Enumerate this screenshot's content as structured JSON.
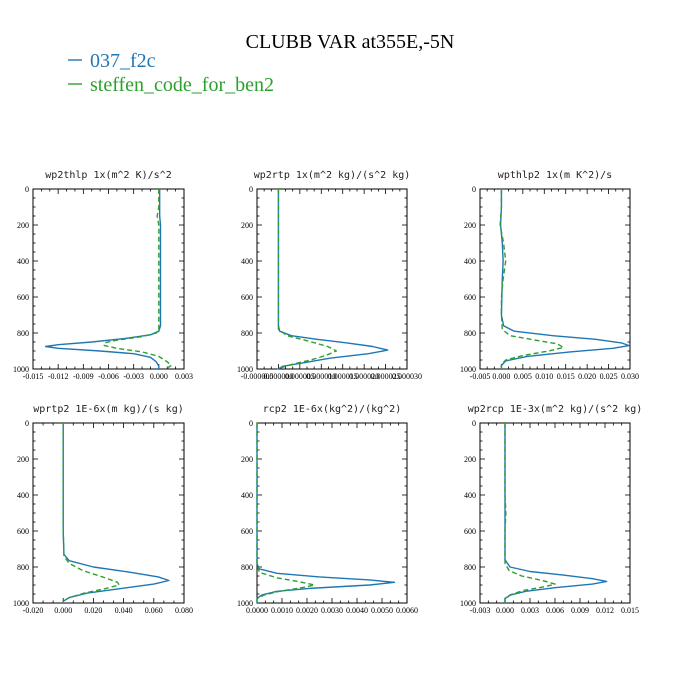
{
  "figure": {
    "title": "CLUBB VAR at355E,-5N"
  },
  "legend": [
    {
      "label": "037_f2c",
      "color": "#1f77b4",
      "dash": ""
    },
    {
      "label": "steffen_code_for_ben2",
      "color": "#2ca02c",
      "dash": "5,3"
    }
  ],
  "chart_data": [
    {
      "type": "line",
      "title": "wp2thlp  1x(m^2 K)/s^2",
      "xlim": [
        -0.015,
        0.003
      ],
      "xticks": [
        -0.015,
        -0.012,
        -0.009,
        -0.006,
        -0.003,
        0.0,
        0.003
      ],
      "xtick_labels": [
        "-0.015",
        "-0.012",
        "-0.009",
        "-0.006",
        "-0.003",
        "0.000",
        "0.003"
      ],
      "ylim": [
        0,
        1000
      ],
      "yticks": [
        0,
        200,
        400,
        600,
        800,
        1000
      ],
      "series": [
        {
          "name": "037_f2c",
          "points": [
            [
              0.0001,
              0
            ],
            [
              0.0001,
              100
            ],
            [
              0.0001,
              150
            ],
            [
              0.0002,
              200
            ],
            [
              0.0002,
              300
            ],
            [
              0.0002,
              400
            ],
            [
              0.0002,
              500
            ],
            [
              0.0002,
              600
            ],
            [
              0.0002,
              700
            ],
            [
              0.0002,
              760
            ],
            [
              0.0,
              790
            ],
            [
              -0.001,
              810
            ],
            [
              -0.004,
              830
            ],
            [
              -0.008,
              850
            ],
            [
              -0.012,
              865
            ],
            [
              -0.0135,
              875
            ],
            [
              -0.012,
              885
            ],
            [
              -0.007,
              900
            ],
            [
              -0.003,
              915
            ],
            [
              -0.001,
              935
            ],
            [
              -0.0003,
              960
            ],
            [
              0.0,
              985
            ],
            [
              0.0,
              1000
            ]
          ]
        },
        {
          "name": "steffen_code_for_ben2",
          "points": [
            [
              0.0,
              0
            ],
            [
              0.0,
              100
            ],
            [
              -0.0002,
              150
            ],
            [
              0.0,
              200
            ],
            [
              0.0,
              300
            ],
            [
              0.0,
              400
            ],
            [
              0.0,
              500
            ],
            [
              0.0,
              600
            ],
            [
              0.0,
              700
            ],
            [
              0.0,
              780
            ],
            [
              -0.0003,
              800
            ],
            [
              -0.002,
              820
            ],
            [
              -0.005,
              840
            ],
            [
              -0.0065,
              855
            ],
            [
              -0.0065,
              870
            ],
            [
              -0.005,
              885
            ],
            [
              -0.002,
              905
            ],
            [
              0.0,
              930
            ],
            [
              0.001,
              960
            ],
            [
              0.0015,
              980
            ],
            [
              0.001,
              995
            ]
          ]
        }
      ]
    },
    {
      "type": "line",
      "title": "wp2rtp  1x(m^2 kg)/(s^2 kg)",
      "xlim": [
        -5e-06,
        3e-05
      ],
      "xticks": [
        -5e-06,
        0.0,
        5e-06,
        1e-05,
        1.5e-05,
        2e-05,
        2.5e-05,
        3e-05
      ],
      "xtick_labels": [
        "-0.000005",
        "0.000000",
        "0.000005",
        "0.000010",
        "0.000015",
        "0.000020",
        "0.000025",
        "0.000030"
      ],
      "ylim": [
        0,
        1000
      ],
      "yticks": [
        0,
        200,
        400,
        600,
        800,
        1000
      ],
      "series": [
        {
          "name": "037_f2c",
          "points": [
            [
              0.0,
              0
            ],
            [
              0.0,
              200
            ],
            [
              0.0,
              400
            ],
            [
              0.0,
              600
            ],
            [
              0.0,
              760
            ],
            [
              3e-07,
              790
            ],
            [
              3e-06,
              815
            ],
            [
              9e-06,
              835
            ],
            [
              1.6e-05,
              855
            ],
            [
              2.2e-05,
              875
            ],
            [
              2.55e-05,
              895
            ],
            [
              2.1e-05,
              915
            ],
            [
              1.2e-05,
              940
            ],
            [
              6e-06,
              965
            ],
            [
              1e-06,
              985
            ],
            [
              0.0,
              1000
            ]
          ]
        },
        {
          "name": "steffen_code_for_ben2",
          "points": [
            [
              0.0,
              0
            ],
            [
              0.0,
              200
            ],
            [
              0.0,
              400
            ],
            [
              0.0,
              600
            ],
            [
              0.0,
              780
            ],
            [
              2e-06,
              815
            ],
            [
              7e-06,
              845
            ],
            [
              1.15e-05,
              875
            ],
            [
              1.35e-05,
              900
            ],
            [
              1.1e-05,
              925
            ],
            [
              7.5e-06,
              950
            ],
            [
              3e-06,
              975
            ],
            [
              -3e-07,
              1000
            ]
          ]
        }
      ]
    },
    {
      "type": "line",
      "title": "wpthlp2  1x(m K^2)/s",
      "xlim": [
        -0.005,
        0.03
      ],
      "xticks": [
        -0.005,
        0.0,
        0.005,
        0.01,
        0.015,
        0.02,
        0.025,
        0.03
      ],
      "xtick_labels": [
        "-0.005",
        "0.000",
        "0.005",
        "0.010",
        "0.015",
        "0.020",
        "0.025",
        "0.030"
      ],
      "ylim": [
        0,
        1000
      ],
      "yticks": [
        0,
        200,
        400,
        600,
        800,
        1000
      ],
      "series": [
        {
          "name": "037_f2c",
          "points": [
            [
              0.0,
              0
            ],
            [
              0.0,
              100
            ],
            [
              -0.0002,
              200
            ],
            [
              0.0002,
              300
            ],
            [
              0.0004,
              400
            ],
            [
              0.0002,
              500
            ],
            [
              0.0001,
              600
            ],
            [
              0.0,
              700
            ],
            [
              0.0005,
              760
            ],
            [
              0.003,
              790
            ],
            [
              0.012,
              815
            ],
            [
              0.022,
              835
            ],
            [
              0.028,
              855
            ],
            [
              0.0298,
              870
            ],
            [
              0.026,
              885
            ],
            [
              0.016,
              905
            ],
            [
              0.006,
              930
            ],
            [
              0.001,
              955
            ],
            [
              0.0,
              980
            ],
            [
              0.0,
              1000
            ]
          ]
        },
        {
          "name": "steffen_code_for_ben2",
          "points": [
            [
              0.0,
              0
            ],
            [
              0.0,
              100
            ],
            [
              -0.0003,
              200
            ],
            [
              0.0005,
              300
            ],
            [
              0.001,
              400
            ],
            [
              0.0004,
              500
            ],
            [
              0.0,
              600
            ],
            [
              0.0,
              700
            ],
            [
              0.0002,
              780
            ],
            [
              0.002,
              815
            ],
            [
              0.008,
              840
            ],
            [
              0.013,
              860
            ],
            [
              0.0145,
              880
            ],
            [
              0.011,
              900
            ],
            [
              0.005,
              925
            ],
            [
              0.001,
              950
            ],
            [
              0.0,
              975
            ],
            [
              0.0,
              1000
            ]
          ]
        }
      ]
    },
    {
      "type": "line",
      "title": "wprtp2  1E-6x(m kg)/(s kg)",
      "xlim": [
        -0.02,
        0.08
      ],
      "xticks": [
        -0.02,
        0.0,
        0.02,
        0.04,
        0.06,
        0.08
      ],
      "xtick_labels": [
        "-0.020",
        "0.000",
        "0.020",
        "0.040",
        "0.060",
        "0.080"
      ],
      "ylim": [
        0,
        1000
      ],
      "yticks": [
        0,
        200,
        400,
        600,
        800,
        1000
      ],
      "series": [
        {
          "name": "037_f2c",
          "points": [
            [
              0.0,
              0
            ],
            [
              0.0,
              200
            ],
            [
              0.0,
              400
            ],
            [
              0.0,
              600
            ],
            [
              0.0005,
              730
            ],
            [
              0.004,
              765
            ],
            [
              0.02,
              800
            ],
            [
              0.045,
              830
            ],
            [
              0.063,
              855
            ],
            [
              0.07,
              875
            ],
            [
              0.06,
              895
            ],
            [
              0.038,
              920
            ],
            [
              0.016,
              945
            ],
            [
              0.004,
              970
            ],
            [
              0.0,
              990
            ],
            [
              0.0,
              1000
            ]
          ]
        },
        {
          "name": "steffen_code_for_ben2",
          "points": [
            [
              0.0,
              0
            ],
            [
              0.0,
              200
            ],
            [
              0.0,
              400
            ],
            [
              0.0,
              600
            ],
            [
              0.0005,
              740
            ],
            [
              0.004,
              780
            ],
            [
              0.013,
              820
            ],
            [
              0.026,
              855
            ],
            [
              0.036,
              885
            ],
            [
              0.037,
              900
            ],
            [
              0.028,
              920
            ],
            [
              0.014,
              945
            ],
            [
              0.004,
              970
            ],
            [
              0.0,
              990
            ],
            [
              0.0,
              1000
            ]
          ]
        }
      ]
    },
    {
      "type": "line",
      "title": "rcp2  1E-6x(kg^2)/(kg^2)",
      "xlim": [
        0.0,
        0.006
      ],
      "xticks": [
        0.0,
        0.001,
        0.002,
        0.003,
        0.004,
        0.005,
        0.006
      ],
      "xtick_labels": [
        "0.0000",
        "0.0010",
        "0.0020",
        "0.0030",
        "0.0040",
        "0.0050",
        "0.0060"
      ],
      "ylim": [
        0,
        1000
      ],
      "yticks": [
        0,
        200,
        400,
        600,
        800,
        1000
      ],
      "series": [
        {
          "name": "037_f2c",
          "points": [
            [
              0.0,
              0
            ],
            [
              0.0,
              200
            ],
            [
              0.0,
              400
            ],
            [
              0.0,
              600
            ],
            [
              0.0,
              780
            ],
            [
              8e-05,
              810
            ],
            [
              0.0008,
              835
            ],
            [
              0.0025,
              855
            ],
            [
              0.0045,
              872
            ],
            [
              0.0055,
              885
            ],
            [
              0.0045,
              900
            ],
            [
              0.0022,
              918
            ],
            [
              0.0008,
              935
            ],
            [
              0.0002,
              955
            ],
            [
              0.0,
              975
            ],
            [
              0.0,
              1000
            ]
          ]
        },
        {
          "name": "steffen_code_for_ben2",
          "points": [
            [
              0.0,
              0
            ],
            [
              0.0,
              200
            ],
            [
              0.0,
              400
            ],
            [
              0.0,
              600
            ],
            [
              0.0,
              790
            ],
            [
              0.0001,
              830
            ],
            [
              0.0008,
              860
            ],
            [
              0.0018,
              885
            ],
            [
              0.0023,
              900
            ],
            [
              0.0018,
              915
            ],
            [
              0.0009,
              935
            ],
            [
              0.0003,
              955
            ],
            [
              0.0,
              975
            ],
            [
              0.0,
              1000
            ]
          ]
        }
      ]
    },
    {
      "type": "line",
      "title": "wp2rcp  1E-3x(m^2 kg)/(s^2 kg)",
      "xlim": [
        -0.003,
        0.015
      ],
      "xticks": [
        -0.003,
        0.0,
        0.003,
        0.006,
        0.009,
        0.012,
        0.015
      ],
      "xtick_labels": [
        "-0.003",
        "0.000",
        "0.003",
        "0.006",
        "0.009",
        "0.012",
        "0.015"
      ],
      "ylim": [
        0,
        1000
      ],
      "yticks": [
        0,
        200,
        400,
        600,
        800,
        1000
      ],
      "series": [
        {
          "name": "037_f2c",
          "points": [
            [
              0.0,
              0
            ],
            [
              0.0,
              200
            ],
            [
              0.0,
              400
            ],
            [
              0.0,
              600
            ],
            [
              0.0,
              760
            ],
            [
              0.0006,
              800
            ],
            [
              0.003,
              825
            ],
            [
              0.007,
              845
            ],
            [
              0.0105,
              865
            ],
            [
              0.0122,
              880
            ],
            [
              0.0105,
              895
            ],
            [
              0.006,
              915
            ],
            [
              0.0025,
              935
            ],
            [
              0.0007,
              955
            ],
            [
              0.0,
              975
            ],
            [
              0.0,
              1000
            ]
          ]
        },
        {
          "name": "steffen_code_for_ben2",
          "points": [
            [
              0.0,
              0
            ],
            [
              0.0,
              200
            ],
            [
              0.0,
              400
            ],
            [
              0.0001,
              500
            ],
            [
              0.0,
              600
            ],
            [
              0.0,
              780
            ],
            [
              0.0005,
              820
            ],
            [
              0.002,
              850
            ],
            [
              0.0045,
              875
            ],
            [
              0.006,
              895
            ],
            [
              0.0047,
              910
            ],
            [
              0.0022,
              930
            ],
            [
              0.0006,
              955
            ],
            [
              0.0,
              975
            ],
            [
              0.0,
              1000
            ]
          ]
        }
      ]
    }
  ]
}
